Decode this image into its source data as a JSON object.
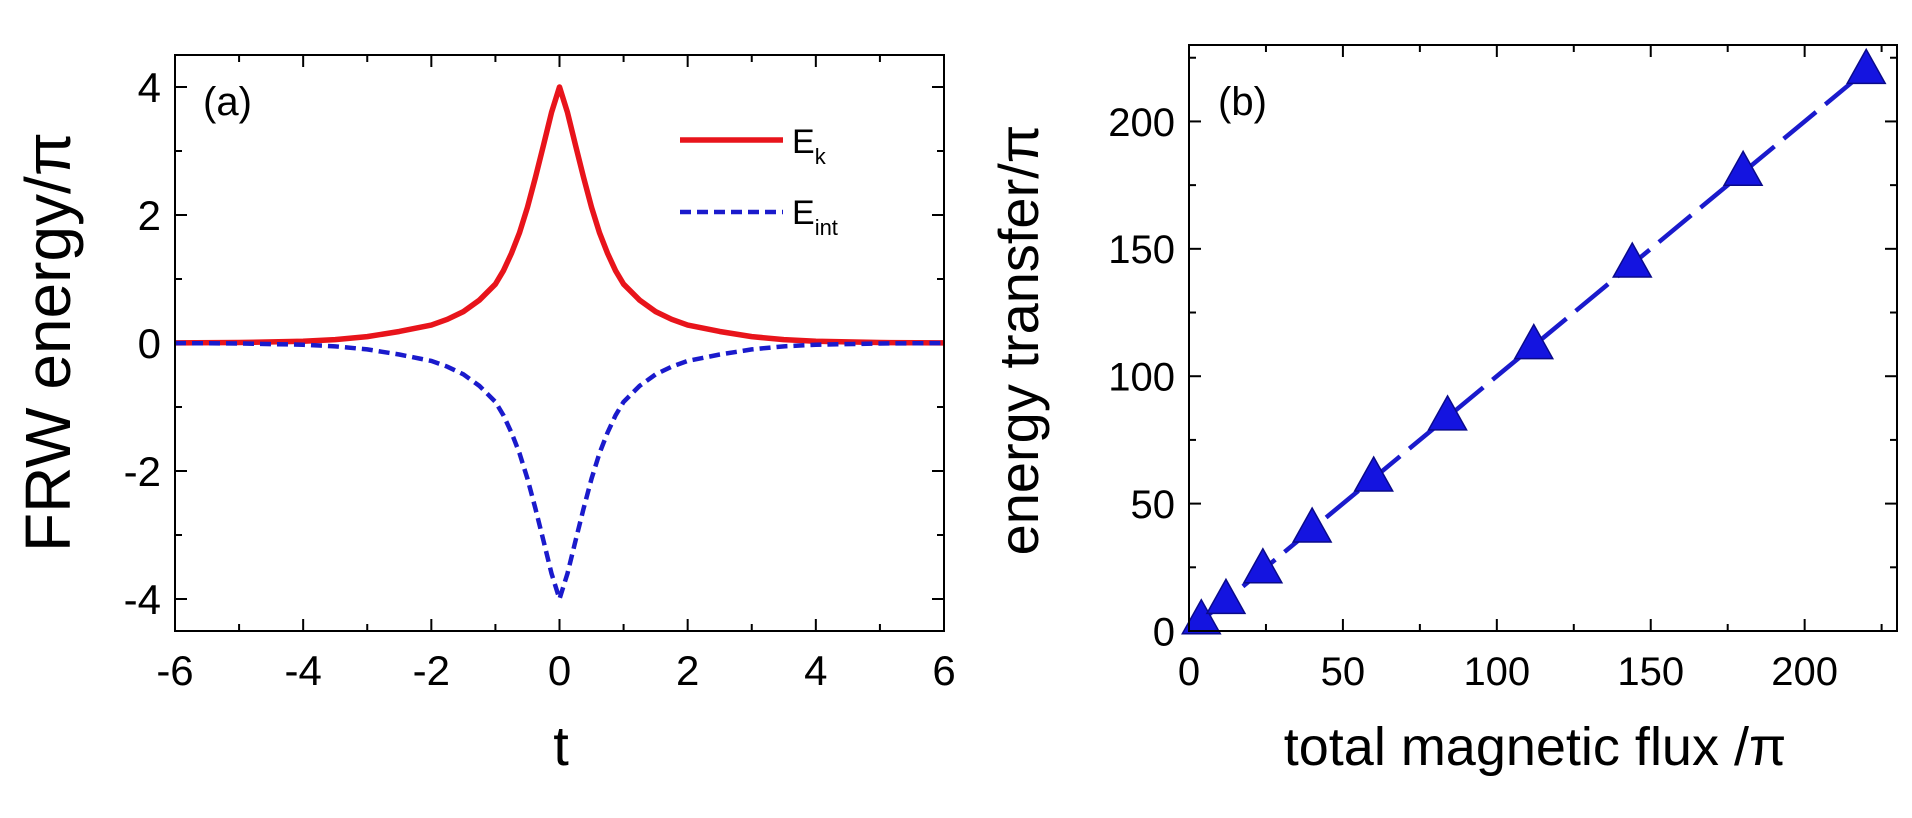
{
  "chart_data": [
    {
      "type": "line",
      "panel_label": "(a)",
      "xlabel": "t",
      "ylabel": "FRW energy/π",
      "xlim": [
        -6,
        6
      ],
      "ylim": [
        -4.5,
        4.5
      ],
      "xticks": [
        -6,
        -4,
        -2,
        0,
        2,
        4,
        6
      ],
      "yticks": [
        -4,
        -2,
        0,
        2,
        4
      ],
      "xtick_labels": [
        "-6",
        "-4",
        "-2",
        "0",
        "2",
        "4",
        "6"
      ],
      "ytick_labels": [
        "-4",
        "-2",
        "0",
        "2",
        "4"
      ],
      "legend_position": "top-right",
      "series": [
        {
          "name": "E_k",
          "legend_main": "E",
          "legend_sub": "k",
          "color": "#e8141b",
          "style": "solid",
          "x": [
            -6,
            -5,
            -4,
            -3.5,
            -3,
            -2.5,
            -2,
            -1.75,
            -1.5,
            -1.25,
            -1,
            -0.875,
            -0.75,
            -0.625,
            -0.5,
            -0.375,
            -0.25,
            -0.125,
            0,
            0.125,
            0.25,
            0.375,
            0.5,
            0.625,
            0.75,
            0.875,
            1,
            1.25,
            1.5,
            1.75,
            2,
            2.5,
            3,
            3.5,
            4,
            5,
            6
          ],
          "y": [
            0.0016,
            0.0073,
            0.027,
            0.052,
            0.1,
            0.18,
            0.28,
            0.37,
            0.49,
            0.67,
            0.92,
            1.13,
            1.4,
            1.72,
            2.12,
            2.59,
            3.09,
            3.6,
            4.0,
            3.6,
            3.09,
            2.59,
            2.12,
            1.72,
            1.4,
            1.13,
            0.92,
            0.67,
            0.49,
            0.37,
            0.28,
            0.18,
            0.1,
            0.052,
            0.027,
            0.0073,
            0.0016
          ]
        },
        {
          "name": "E_int",
          "legend_main": "E",
          "legend_sub": "int",
          "color": "#1a1acc",
          "style": "dashed",
          "x": [
            -6,
            -5,
            -4,
            -3.5,
            -3,
            -2.5,
            -2,
            -1.75,
            -1.5,
            -1.25,
            -1,
            -0.875,
            -0.75,
            -0.625,
            -0.5,
            -0.375,
            -0.25,
            -0.125,
            0,
            0.125,
            0.25,
            0.375,
            0.5,
            0.625,
            0.75,
            0.875,
            1,
            1.25,
            1.5,
            1.75,
            2,
            2.5,
            3,
            3.5,
            4,
            5,
            6
          ],
          "y": [
            -0.0016,
            -0.0073,
            -0.027,
            -0.052,
            -0.1,
            -0.18,
            -0.28,
            -0.37,
            -0.49,
            -0.67,
            -0.92,
            -1.13,
            -1.4,
            -1.72,
            -2.12,
            -2.59,
            -3.09,
            -3.6,
            -4.0,
            -3.6,
            -3.09,
            -2.59,
            -2.12,
            -1.72,
            -1.4,
            -1.13,
            -0.92,
            -0.67,
            -0.49,
            -0.37,
            -0.28,
            -0.18,
            -0.1,
            -0.052,
            -0.027,
            -0.0073,
            -0.0016
          ]
        }
      ]
    },
    {
      "type": "line",
      "panel_label": "(b)",
      "xlabel": "total magnetic flux /π",
      "ylabel": "energy transfer/π",
      "xlim": [
        0,
        230
      ],
      "ylim": [
        0,
        230
      ],
      "xticks": [
        0,
        50,
        100,
        150,
        200
      ],
      "yticks": [
        0,
        50,
        100,
        150,
        200
      ],
      "xtick_labels": [
        "0",
        "50",
        "100",
        "150",
        "200"
      ],
      "ytick_labels": [
        "0",
        "50",
        "100",
        "150",
        "200"
      ],
      "series": [
        {
          "name": "energy transfer",
          "color": "#1414e0",
          "line_color": "#1a1acc",
          "style": "dashed",
          "marker": "triangle",
          "x": [
            4,
            12,
            24,
            40,
            60,
            84,
            112,
            144,
            180,
            220
          ],
          "y": [
            4,
            12,
            24,
            40,
            60,
            84,
            112,
            144,
            180,
            220
          ]
        }
      ]
    }
  ]
}
